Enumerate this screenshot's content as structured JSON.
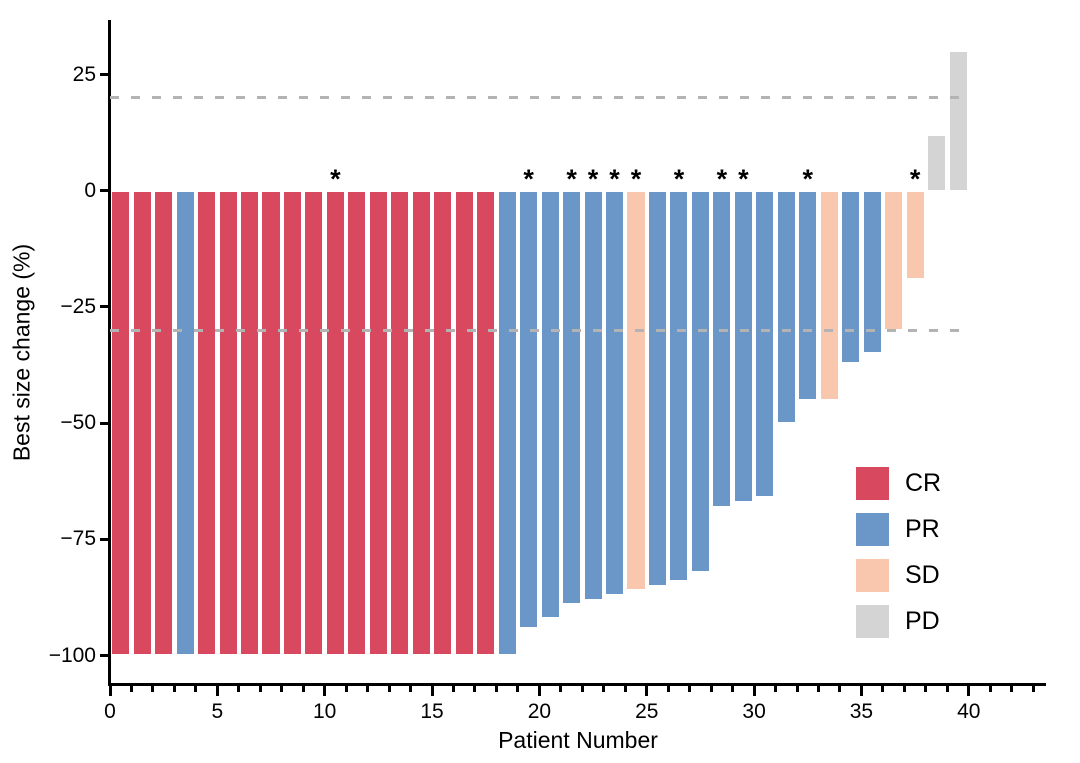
{
  "chart_data": {
    "type": "bar",
    "title": "",
    "xlabel": "Patient Number",
    "ylabel": "Best size change (%)",
    "star_symbol": "*",
    "grid": false,
    "legend_position": "inside-right",
    "xlim": [
      0,
      43.6
    ],
    "ylim": [
      -106,
      36
    ],
    "x_major_ticks": [
      {
        "value": 0,
        "label": "0"
      },
      {
        "value": 5,
        "label": "5"
      },
      {
        "value": 10,
        "label": "10"
      },
      {
        "value": 15,
        "label": "15"
      },
      {
        "value": 20,
        "label": "20"
      },
      {
        "value": 25,
        "label": "25"
      },
      {
        "value": 30,
        "label": "30"
      },
      {
        "value": 35,
        "label": "35"
      },
      {
        "value": 40,
        "label": "40"
      }
    ],
    "x_minor_tick_step": 1,
    "y_ticks": [
      {
        "value": 25,
        "label": "25"
      },
      {
        "value": 0,
        "label": "0"
      },
      {
        "value": -25,
        "label": "−25"
      },
      {
        "value": -50,
        "label": "−50"
      },
      {
        "value": -75,
        "label": "−75"
      },
      {
        "value": -100,
        "label": "−100"
      }
    ],
    "reference_lines": [
      {
        "y": 20,
        "style": "dashed",
        "color": "#b3b3b3"
      },
      {
        "y": -30,
        "style": "dashed",
        "color": "#b3b3b3"
      }
    ],
    "colors": {
      "CR": "#d8495f",
      "PR": "#6b96c8",
      "SD": "#f8c7ad",
      "PD": "#d4d4d4"
    },
    "legend": [
      {
        "label": "CR"
      },
      {
        "label": "PR"
      },
      {
        "label": "SD"
      },
      {
        "label": "PD"
      }
    ],
    "patients": [
      {
        "n": 1,
        "value": -100,
        "response": "CR",
        "star": false
      },
      {
        "n": 2,
        "value": -100,
        "response": "CR",
        "star": false
      },
      {
        "n": 3,
        "value": -100,
        "response": "CR",
        "star": false
      },
      {
        "n": 4,
        "value": -100,
        "response": "PR",
        "star": false
      },
      {
        "n": 5,
        "value": -100,
        "response": "CR",
        "star": false
      },
      {
        "n": 6,
        "value": -100,
        "response": "CR",
        "star": false
      },
      {
        "n": 7,
        "value": -100,
        "response": "CR",
        "star": false
      },
      {
        "n": 8,
        "value": -100,
        "response": "CR",
        "star": false
      },
      {
        "n": 9,
        "value": -100,
        "response": "CR",
        "star": false
      },
      {
        "n": 10,
        "value": -100,
        "response": "CR",
        "star": false
      },
      {
        "n": 11,
        "value": -100,
        "response": "CR",
        "star": true
      },
      {
        "n": 12,
        "value": -100,
        "response": "CR",
        "star": false
      },
      {
        "n": 13,
        "value": -100,
        "response": "CR",
        "star": false
      },
      {
        "n": 14,
        "value": -100,
        "response": "CR",
        "star": false
      },
      {
        "n": 15,
        "value": -100,
        "response": "CR",
        "star": false
      },
      {
        "n": 16,
        "value": -100,
        "response": "CR",
        "star": false
      },
      {
        "n": 17,
        "value": -100,
        "response": "CR",
        "star": false
      },
      {
        "n": 18,
        "value": -100,
        "response": "CR",
        "star": false
      },
      {
        "n": 19,
        "value": -100,
        "response": "PR",
        "star": false
      },
      {
        "n": 20,
        "value": -94,
        "response": "PR",
        "star": true
      },
      {
        "n": 21,
        "value": -92,
        "response": "PR",
        "star": false
      },
      {
        "n": 22,
        "value": -89,
        "response": "PR",
        "star": true
      },
      {
        "n": 23,
        "value": -88,
        "response": "PR",
        "star": true
      },
      {
        "n": 24,
        "value": -87,
        "response": "PR",
        "star": true
      },
      {
        "n": 25,
        "value": -86,
        "response": "SD",
        "star": true
      },
      {
        "n": 26,
        "value": -85,
        "response": "PR",
        "star": false
      },
      {
        "n": 27,
        "value": -84,
        "response": "PR",
        "star": true
      },
      {
        "n": 28,
        "value": -82,
        "response": "PR",
        "star": false
      },
      {
        "n": 29,
        "value": -68,
        "response": "PR",
        "star": true
      },
      {
        "n": 30,
        "value": -67,
        "response": "PR",
        "star": true
      },
      {
        "n": 31,
        "value": -66,
        "response": "PR",
        "star": false
      },
      {
        "n": 32,
        "value": -50,
        "response": "PR",
        "star": false
      },
      {
        "n": 33,
        "value": -45,
        "response": "PR",
        "star": true
      },
      {
        "n": 34,
        "value": -45,
        "response": "SD",
        "star": false
      },
      {
        "n": 35,
        "value": -37,
        "response": "PR",
        "star": false
      },
      {
        "n": 36,
        "value": -35,
        "response": "PR",
        "star": false
      },
      {
        "n": 37,
        "value": -30,
        "response": "SD",
        "star": false
      },
      {
        "n": 38,
        "value": -19,
        "response": "SD",
        "star": true
      },
      {
        "n": 39,
        "value": 12,
        "response": "PD",
        "star": false
      },
      {
        "n": 40,
        "value": 30,
        "response": "PD",
        "star": false
      }
    ]
  }
}
